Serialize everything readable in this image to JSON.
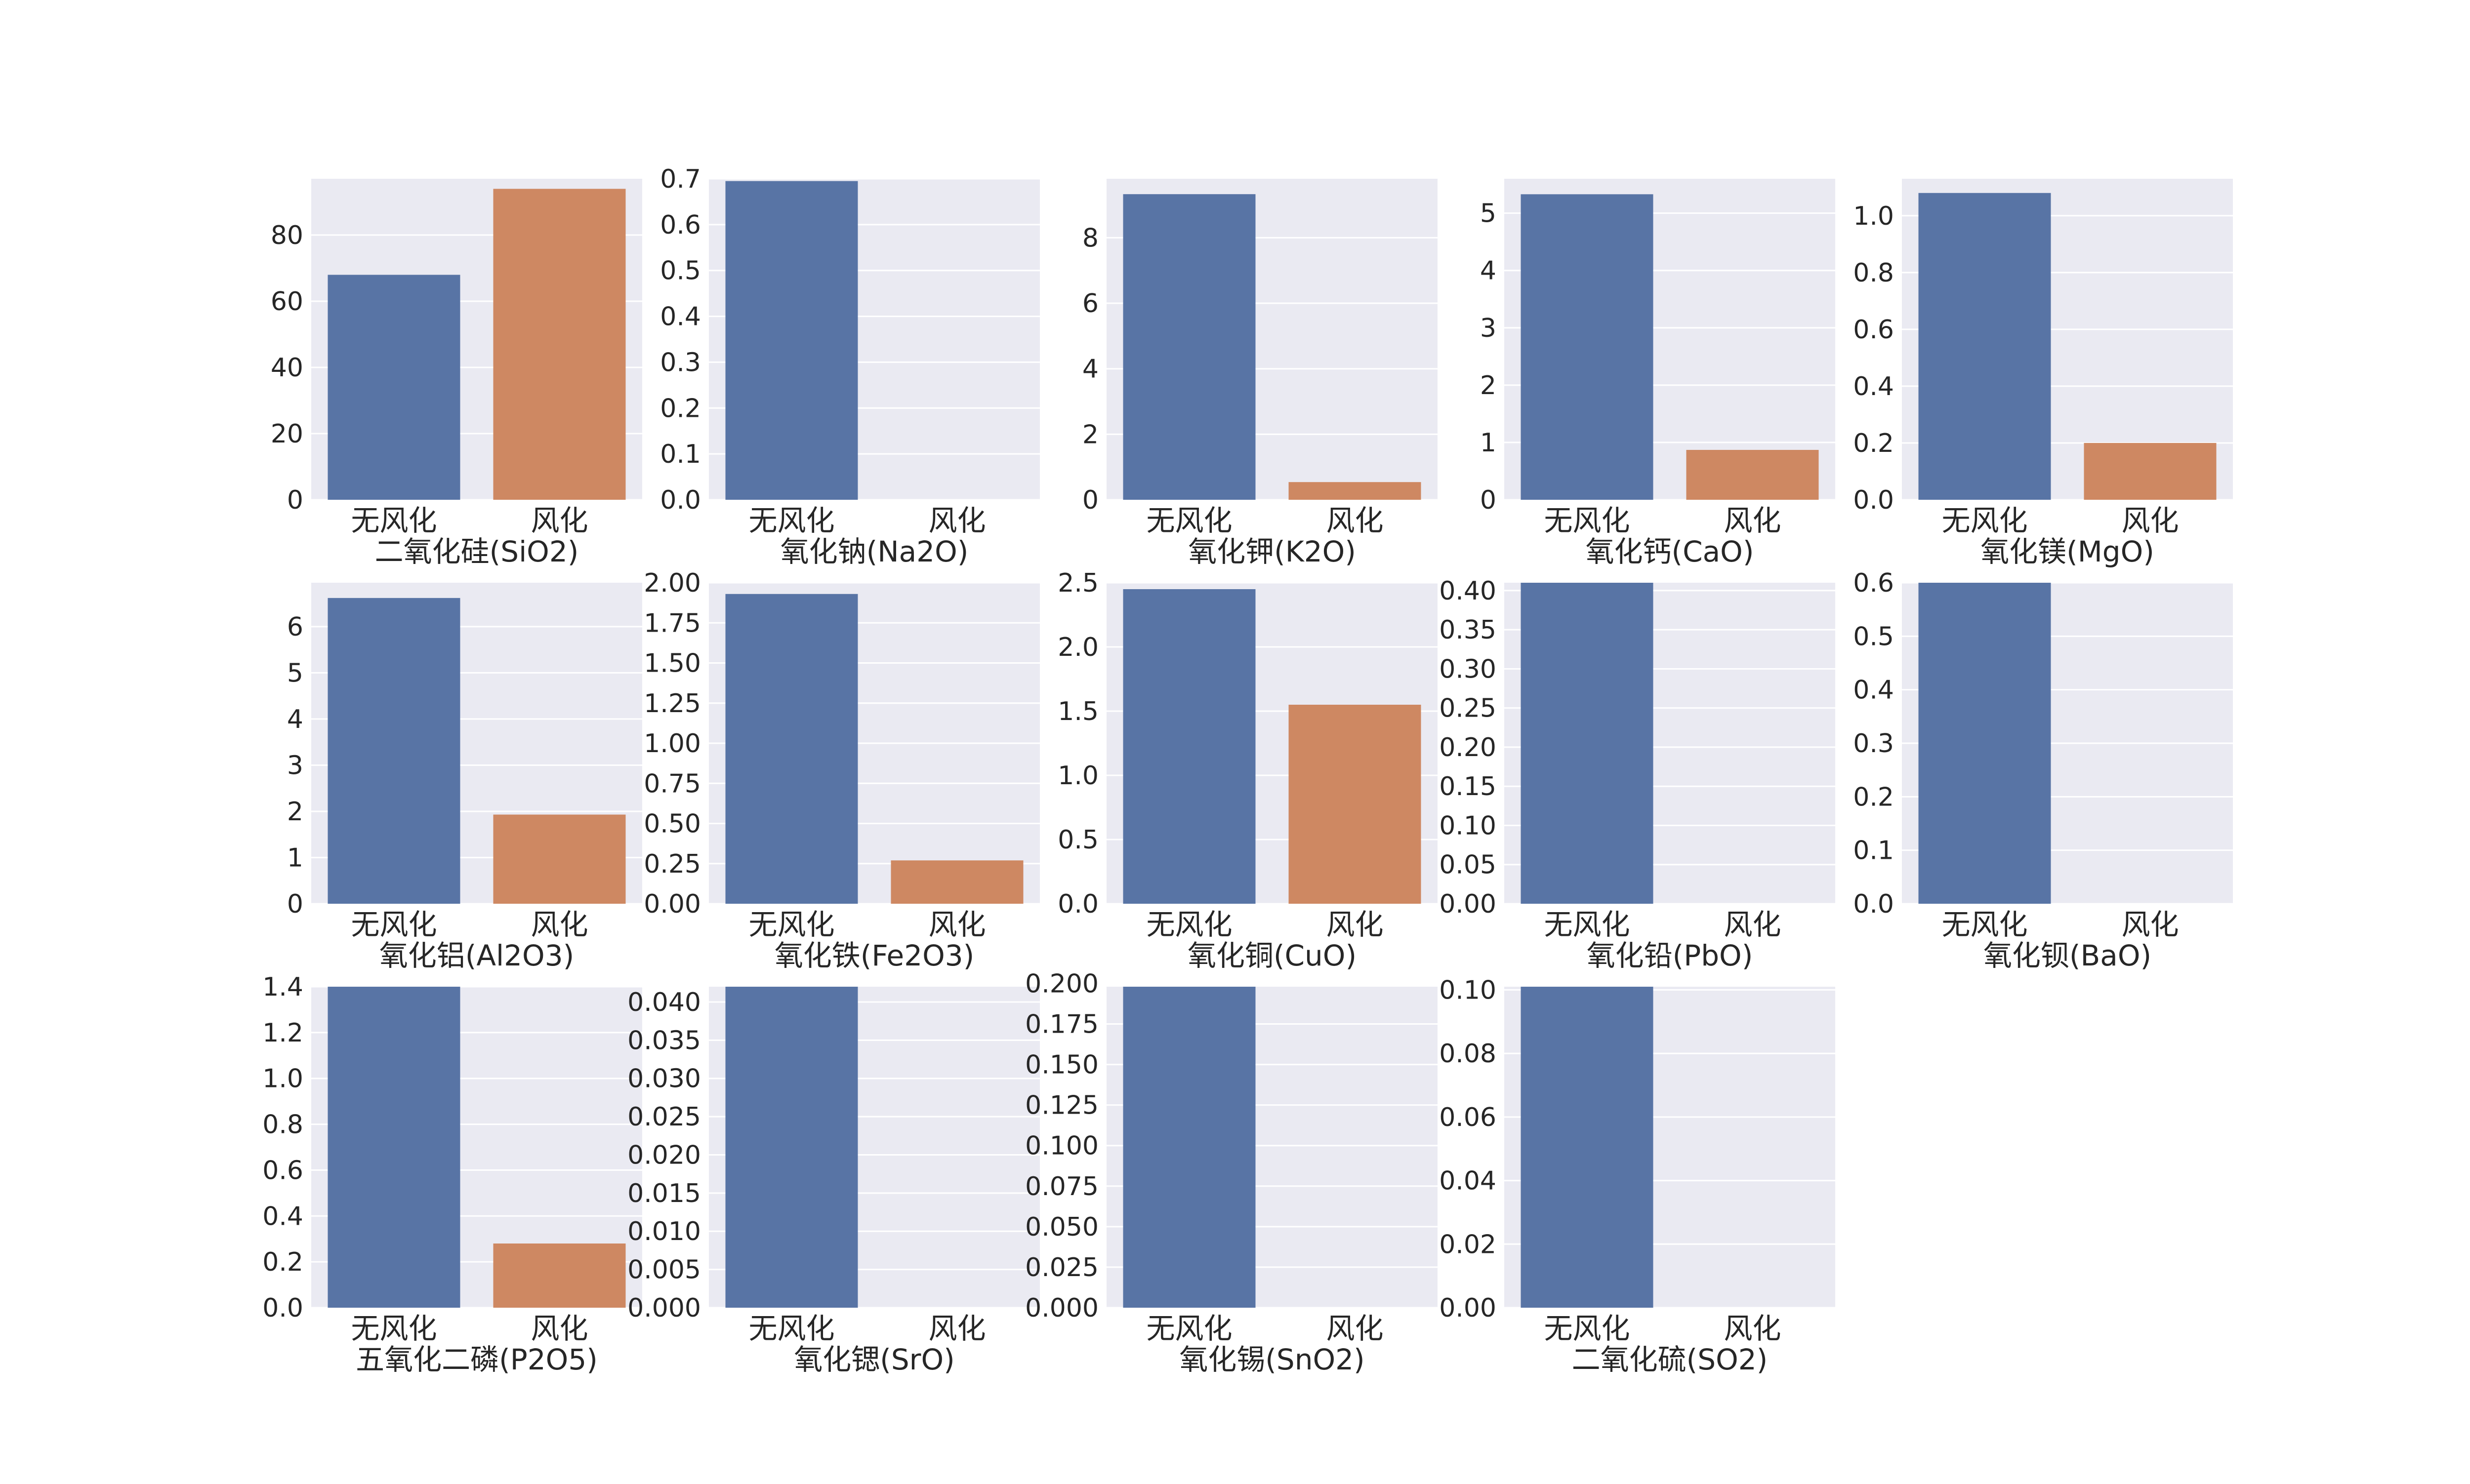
{
  "chart_data": [
    {
      "type": "bar",
      "xlabel": "二氧化硅(SiO2)",
      "categories": [
        "无风化",
        "风化"
      ],
      "values": [
        67.98,
        93.96
      ],
      "ylim": [
        0,
        97
      ],
      "ticks": [
        0,
        20,
        40,
        60,
        80
      ],
      "tick_labels": [
        "0",
        "20",
        "40",
        "60",
        "80"
      ]
    },
    {
      "type": "bar",
      "xlabel": "氧化钠(Na2O)",
      "categories": [
        "无风化",
        "风化"
      ],
      "values": [
        0.695,
        0
      ],
      "ylim": [
        0,
        0.7
      ],
      "ticks": [
        0,
        0.1,
        0.2,
        0.3,
        0.4,
        0.5,
        0.6,
        0.7
      ],
      "tick_labels": [
        "0.0",
        "0.1",
        "0.2",
        "0.3",
        "0.4",
        "0.5",
        "0.6",
        "0.7"
      ]
    },
    {
      "type": "bar",
      "xlabel": "氧化钾(K2O)",
      "categories": [
        "无风化",
        "风化"
      ],
      "values": [
        9.33,
        0.54
      ],
      "ylim": [
        0,
        9.8
      ],
      "ticks": [
        0,
        2,
        4,
        6,
        8
      ],
      "tick_labels": [
        "0",
        "2",
        "4",
        "6",
        "8"
      ]
    },
    {
      "type": "bar",
      "xlabel": "氧化钙(CaO)",
      "categories": [
        "无风化",
        "风化"
      ],
      "values": [
        5.33,
        0.87
      ],
      "ylim": [
        0,
        5.6
      ],
      "ticks": [
        0,
        1,
        2,
        3,
        4,
        5
      ],
      "tick_labels": [
        "0",
        "1",
        "2",
        "3",
        "4",
        "5"
      ]
    },
    {
      "type": "bar",
      "xlabel": "氧化镁(MgO)",
      "categories": [
        "无风化",
        "风化"
      ],
      "values": [
        1.08,
        0.2
      ],
      "ylim": [
        0,
        1.13
      ],
      "ticks": [
        0,
        0.2,
        0.4,
        0.6,
        0.8,
        1.0
      ],
      "tick_labels": [
        "0.0",
        "0.2",
        "0.4",
        "0.6",
        "0.8",
        "1.0"
      ]
    },
    {
      "type": "bar",
      "xlabel": "氧化铝(Al2O3)",
      "categories": [
        "无风化",
        "风化"
      ],
      "values": [
        6.62,
        1.93
      ],
      "ylim": [
        0,
        6.95
      ],
      "ticks": [
        0,
        1,
        2,
        3,
        4,
        5,
        6
      ],
      "tick_labels": [
        "0",
        "1",
        "2",
        "3",
        "4",
        "5",
        "6"
      ]
    },
    {
      "type": "bar",
      "xlabel": "氧化铁(Fe2O3)",
      "categories": [
        "无风化",
        "风化"
      ],
      "values": [
        1.93,
        0.27
      ],
      "ylim": [
        0,
        2.0
      ],
      "ticks": [
        0,
        0.25,
        0.5,
        0.75,
        1.0,
        1.25,
        1.5,
        1.75,
        2.0
      ],
      "tick_labels": [
        "0.00",
        "0.25",
        "0.50",
        "0.75",
        "1.00",
        "1.25",
        "1.50",
        "1.75",
        "2.00"
      ]
    },
    {
      "type": "bar",
      "xlabel": "氧化铜(CuO)",
      "categories": [
        "无风化",
        "风化"
      ],
      "values": [
        2.45,
        1.55
      ],
      "ylim": [
        0,
        2.5
      ],
      "ticks": [
        0,
        0.5,
        1.0,
        1.5,
        2.0,
        2.5
      ],
      "tick_labels": [
        "0.0",
        "0.5",
        "1.0",
        "1.5",
        "2.0",
        "2.5"
      ]
    },
    {
      "type": "bar",
      "xlabel": "氧化铅(PbO)",
      "categories": [
        "无风化",
        "风化"
      ],
      "values": [
        0.41,
        0
      ],
      "ylim": [
        0,
        0.41
      ],
      "ticks": [
        0,
        0.05,
        0.1,
        0.15,
        0.2,
        0.25,
        0.3,
        0.35,
        0.4
      ],
      "tick_labels": [
        "0.00",
        "0.05",
        "0.10",
        "0.15",
        "0.20",
        "0.25",
        "0.30",
        "0.35",
        "0.40"
      ]
    },
    {
      "type": "bar",
      "xlabel": "氧化钡(BaO)",
      "categories": [
        "无风化",
        "风化"
      ],
      "values": [
        0.6,
        0
      ],
      "ylim": [
        0,
        0.6
      ],
      "ticks": [
        0,
        0.1,
        0.2,
        0.3,
        0.4,
        0.5,
        0.6
      ],
      "tick_labels": [
        "0.0",
        "0.1",
        "0.2",
        "0.3",
        "0.4",
        "0.5",
        "0.6"
      ]
    },
    {
      "type": "bar",
      "xlabel": "五氧化二磷(P2O5)",
      "categories": [
        "无风化",
        "风化"
      ],
      "values": [
        1.4,
        0.28
      ],
      "ylim": [
        0,
        1.4
      ],
      "ticks": [
        0,
        0.2,
        0.4,
        0.6,
        0.8,
        1.0,
        1.2,
        1.4
      ],
      "tick_labels": [
        "0.0",
        "0.2",
        "0.4",
        "0.6",
        "0.8",
        "1.0",
        "1.2",
        "1.4"
      ]
    },
    {
      "type": "bar",
      "xlabel": "氧化锶(SrO)",
      "categories": [
        "无风化",
        "风化"
      ],
      "values": [
        0.042,
        0
      ],
      "ylim": [
        0,
        0.042
      ],
      "ticks": [
        0,
        0.005,
        0.01,
        0.015,
        0.02,
        0.025,
        0.03,
        0.035,
        0.04
      ],
      "tick_labels": [
        "0.000",
        "0.005",
        "0.010",
        "0.015",
        "0.020",
        "0.025",
        "0.030",
        "0.035",
        "0.040"
      ]
    },
    {
      "type": "bar",
      "xlabel": "氧化锡(SnO2)",
      "categories": [
        "无风化",
        "风化"
      ],
      "values": [
        0.198,
        0
      ],
      "ylim": [
        0,
        0.198
      ],
      "ticks": [
        0,
        0.025,
        0.05,
        0.075,
        0.1,
        0.125,
        0.15,
        0.175,
        0.2
      ],
      "tick_labels": [
        "0.000",
        "0.025",
        "0.050",
        "0.075",
        "0.100",
        "0.125",
        "0.150",
        "0.175",
        "0.200"
      ]
    },
    {
      "type": "bar",
      "xlabel": "二氧化硫(SO2)",
      "categories": [
        "无风化",
        "风化"
      ],
      "values": [
        0.101,
        0
      ],
      "ylim": [
        0,
        0.101
      ],
      "ticks": [
        0,
        0.02,
        0.04,
        0.06,
        0.08,
        0.1
      ],
      "tick_labels": [
        "0.00",
        "0.02",
        "0.04",
        "0.06",
        "0.08",
        "0.10"
      ]
    }
  ],
  "colors": {
    "panel_bg": "#EAEAF2",
    "grid": "#FFFFFF",
    "series": [
      "#5874A5",
      "#CE8862"
    ]
  }
}
